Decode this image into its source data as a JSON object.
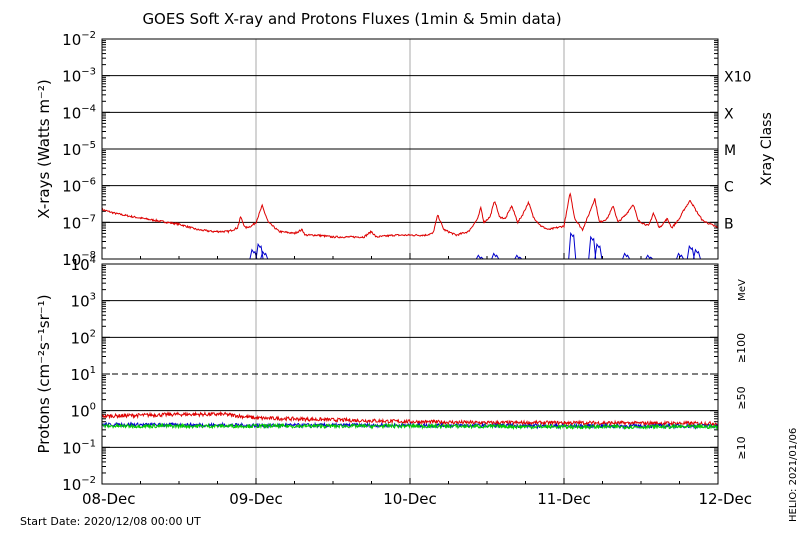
{
  "chart_data": {
    "title": "GOES Soft X-ray and Protons Fluxes   (1min & 5min data)",
    "start_date_label": "Start Date: 2020/12/08 00:00 UT",
    "credit": "HELIO: 2021/01/06",
    "x_axis": {
      "type": "time",
      "range": [
        "2020-12-08",
        "2020-12-12"
      ],
      "tick_labels": [
        "08-Dec",
        "09-Dec",
        "10-Dec",
        "11-Dec",
        "12-Dec"
      ]
    },
    "panels": [
      {
        "id": "xray",
        "type": "line",
        "ylabel": "X-rays (Watts m⁻²)",
        "yscale": "log",
        "ylim_exp": [
          -8,
          -2
        ],
        "ytick_exponents": [
          -2,
          -3,
          -4,
          -5,
          -6,
          -7,
          -8
        ],
        "right_axis_label": "Xray Class",
        "class_labels": [
          {
            "label": "X10",
            "exp": -3
          },
          {
            "label": "X",
            "exp": -4
          },
          {
            "label": "M",
            "exp": -5
          },
          {
            "label": "C",
            "exp": -6
          },
          {
            "label": "B",
            "exp": -7
          }
        ],
        "series": [
          {
            "color": "#dd0000",
            "points": [
              [
                0.0,
                -6.65
              ],
              [
                0.08,
                -6.75
              ],
              [
                0.2,
                -6.85
              ],
              [
                0.35,
                -6.95
              ],
              [
                0.5,
                -7.05
              ],
              [
                0.62,
                -7.2
              ],
              [
                0.72,
                -7.25
              ],
              [
                0.82,
                -7.25
              ],
              [
                0.88,
                -7.15
              ],
              [
                0.9,
                -6.85
              ],
              [
                0.93,
                -7.15
              ],
              [
                0.97,
                -7.1
              ],
              [
                1.0,
                -7.0
              ],
              [
                1.04,
                -6.55
              ],
              [
                1.08,
                -7.0
              ],
              [
                1.15,
                -7.25
              ],
              [
                1.25,
                -7.3
              ],
              [
                1.3,
                -7.2
              ],
              [
                1.32,
                -7.35
              ],
              [
                1.4,
                -7.35
              ],
              [
                1.5,
                -7.4
              ],
              [
                1.6,
                -7.4
              ],
              [
                1.7,
                -7.4
              ],
              [
                1.75,
                -7.25
              ],
              [
                1.78,
                -7.4
              ],
              [
                1.9,
                -7.35
              ],
              [
                2.0,
                -7.35
              ],
              [
                2.1,
                -7.35
              ],
              [
                2.15,
                -7.3
              ],
              [
                2.18,
                -6.8
              ],
              [
                2.22,
                -7.2
              ],
              [
                2.3,
                -7.35
              ],
              [
                2.38,
                -7.25
              ],
              [
                2.44,
                -6.9
              ],
              [
                2.46,
                -6.6
              ],
              [
                2.48,
                -7.0
              ],
              [
                2.52,
                -6.85
              ],
              [
                2.55,
                -6.4
              ],
              [
                2.58,
                -6.85
              ],
              [
                2.62,
                -6.9
              ],
              [
                2.66,
                -6.55
              ],
              [
                2.7,
                -7.0
              ],
              [
                2.73,
                -6.8
              ],
              [
                2.77,
                -6.45
              ],
              [
                2.8,
                -6.85
              ],
              [
                2.85,
                -7.1
              ],
              [
                2.9,
                -7.2
              ],
              [
                2.95,
                -7.15
              ],
              [
                3.0,
                -7.1
              ],
              [
                3.04,
                -6.2
              ],
              [
                3.07,
                -6.9
              ],
              [
                3.12,
                -7.2
              ],
              [
                3.16,
                -6.8
              ],
              [
                3.2,
                -6.35
              ],
              [
                3.23,
                -7.0
              ],
              [
                3.28,
                -6.9
              ],
              [
                3.32,
                -6.55
              ],
              [
                3.35,
                -7.0
              ],
              [
                3.4,
                -6.8
              ],
              [
                3.45,
                -6.5
              ],
              [
                3.48,
                -6.95
              ],
              [
                3.55,
                -7.1
              ],
              [
                3.58,
                -6.75
              ],
              [
                3.62,
                -7.15
              ],
              [
                3.67,
                -6.9
              ],
              [
                3.7,
                -7.15
              ],
              [
                3.75,
                -6.9
              ],
              [
                3.78,
                -6.65
              ],
              [
                3.82,
                -6.4
              ],
              [
                3.86,
                -6.7
              ],
              [
                3.9,
                -6.95
              ],
              [
                3.95,
                -7.05
              ],
              [
                4.0,
                -7.15
              ]
            ]
          },
          {
            "color": "#0000cc",
            "spikes": [
              [
                0.98,
                -7.75
              ],
              [
                1.02,
                -7.6
              ],
              [
                1.05,
                -7.8
              ],
              [
                2.45,
                -7.9
              ],
              [
                2.55,
                -7.85
              ],
              [
                2.7,
                -7.9
              ],
              [
                3.05,
                -7.3
              ],
              [
                3.18,
                -7.4
              ],
              [
                3.22,
                -7.6
              ],
              [
                3.4,
                -7.85
              ],
              [
                3.55,
                -7.9
              ],
              [
                3.75,
                -7.85
              ],
              [
                3.82,
                -7.65
              ],
              [
                3.86,
                -7.75
              ]
            ]
          }
        ]
      },
      {
        "id": "protons",
        "type": "line",
        "ylabel": "Protons (cm⁻²s⁻¹sr⁻¹)",
        "yscale": "log",
        "ylim_exp": [
          -2,
          4
        ],
        "ytick_exponents": [
          4,
          3,
          2,
          1,
          0,
          -1,
          -2
        ],
        "threshold_exp": 1,
        "units_label": "MeV",
        "series": [
          {
            "name": "≥10",
            "color": "#dd0000",
            "points": [
              [
                0.0,
                -0.15
              ],
              [
                0.5,
                -0.1
              ],
              [
                0.8,
                -0.1
              ],
              [
                1.0,
                -0.2
              ],
              [
                1.5,
                -0.25
              ],
              [
                2.0,
                -0.3
              ],
              [
                2.5,
                -0.33
              ],
              [
                3.0,
                -0.33
              ],
              [
                3.5,
                -0.34
              ],
              [
                4.0,
                -0.35
              ]
            ]
          },
          {
            "name": "≥50",
            "color": "#0000cc",
            "points": [
              [
                0.0,
                -0.38
              ],
              [
                1.0,
                -0.4
              ],
              [
                2.0,
                -0.4
              ],
              [
                3.0,
                -0.42
              ],
              [
                4.0,
                -0.42
              ]
            ]
          },
          {
            "name": "≥100",
            "color": "#00cc00",
            "points": [
              [
                0.0,
                -0.42
              ],
              [
                1.0,
                -0.42
              ],
              [
                2.0,
                -0.42
              ],
              [
                3.0,
                -0.44
              ],
              [
                4.0,
                -0.44
              ]
            ]
          }
        ]
      }
    ]
  }
}
